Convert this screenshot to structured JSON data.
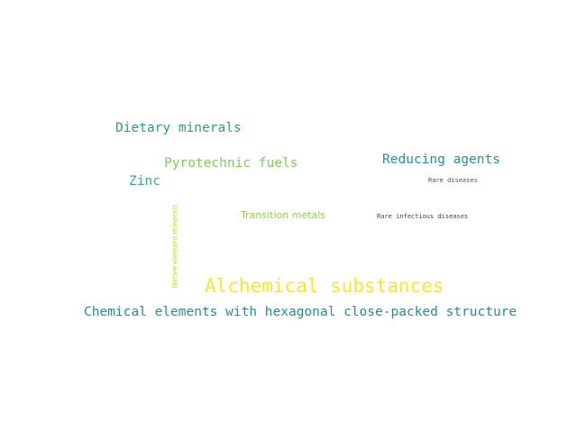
{
  "words": [
    {
      "id": "alchemical",
      "text": "Alchemical substances",
      "color": "#fde725"
    },
    {
      "id": "hcp",
      "text": "Chemical elements with hexagonal close-packed structure",
      "color": "#21918c"
    },
    {
      "id": "dietary",
      "text": "Dietary minerals",
      "color": "#2a9d8a"
    },
    {
      "id": "reducing",
      "text": "Reducing agents",
      "color": "#23968b"
    },
    {
      "id": "pyro",
      "text": "Pyrotechnic fuels",
      "color": "#7ad151"
    },
    {
      "id": "zinc",
      "text": "Zinc",
      "color": "#35b779"
    },
    {
      "id": "transition",
      "text": "Transition metals",
      "color": "#8fd744"
    },
    {
      "id": "rare",
      "text": "Rare diseases",
      "color": "#3b528b"
    },
    {
      "id": "rareinf",
      "text": "Rare infectious diseases",
      "color": "#46337e"
    },
    {
      "id": "native",
      "text": "Native element minerals",
      "color": "#b5de2b"
    }
  ]
}
